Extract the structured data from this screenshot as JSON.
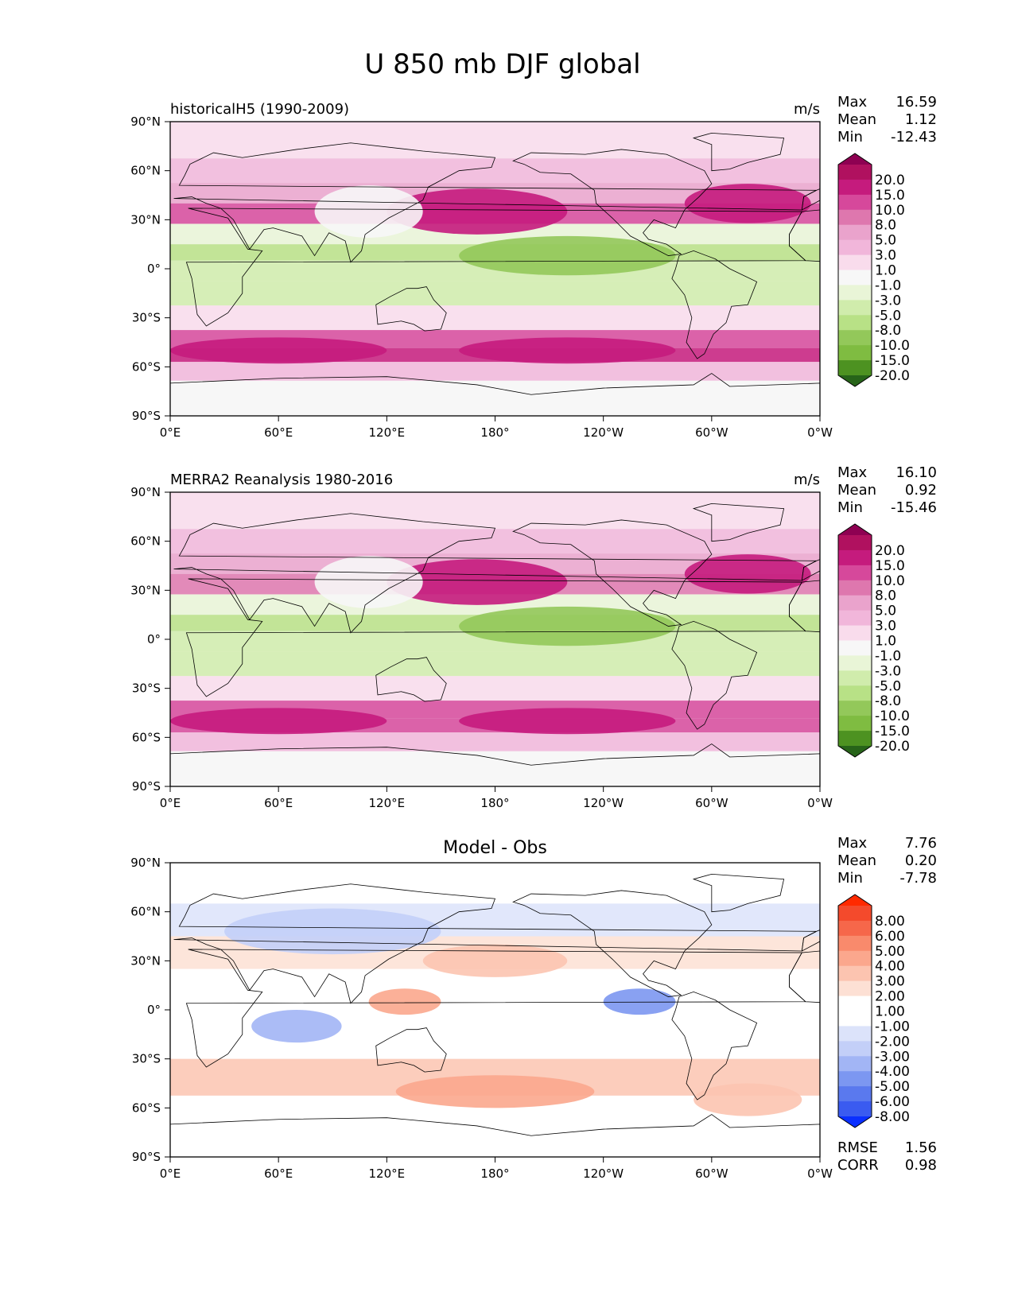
{
  "title": "U 850 mb DJF global",
  "panels": [
    {
      "title_left": "historicalH5 (1990-2009)",
      "title_center": "",
      "units": "m/s",
      "stats": [
        {
          "label": "Max",
          "value": "16.59"
        },
        {
          "label": "Mean",
          "value": "1.12"
        },
        {
          "label": "Min",
          "value": "-12.43"
        }
      ],
      "footer_stats": [],
      "colorbar": {
        "labels": [
          "20.0",
          "15.0",
          "10.0",
          "8.0",
          "5.0",
          "3.0",
          "1.0",
          "-1.0",
          "-3.0",
          "-5.0",
          "-8.0",
          "-10.0",
          "-15.0",
          "-20.0"
        ],
        "colors": [
          "#8e0152",
          "#b0115f",
          "#c51b7d",
          "#d6489b",
          "#de77ae",
          "#eaa3cc",
          "#f1b6da",
          "#f9dcec",
          "#f7f7f7",
          "#e9f5d7",
          "#d0ecac",
          "#b8e186",
          "#93c85a",
          "#7fbc41",
          "#4d9221",
          "#276419"
        ],
        "max_color": "#8e0152",
        "min_color": "#276419"
      }
    },
    {
      "title_left": "MERRA2 Reanalysis 1980-2016",
      "title_center": "",
      "units": "m/s",
      "stats": [
        {
          "label": "Max",
          "value": "16.10"
        },
        {
          "label": "Mean",
          "value": "0.92"
        },
        {
          "label": "Min",
          "value": "-15.46"
        }
      ],
      "footer_stats": [],
      "colorbar": {
        "labels": [
          "20.0",
          "15.0",
          "10.0",
          "8.0",
          "5.0",
          "3.0",
          "1.0",
          "-1.0",
          "-3.0",
          "-5.0",
          "-8.0",
          "-10.0",
          "-15.0",
          "-20.0"
        ],
        "colors": [
          "#8e0152",
          "#b0115f",
          "#c51b7d",
          "#d6489b",
          "#de77ae",
          "#eaa3cc",
          "#f1b6da",
          "#f9dcec",
          "#f7f7f7",
          "#e9f5d7",
          "#d0ecac",
          "#b8e186",
          "#93c85a",
          "#7fbc41",
          "#4d9221",
          "#276419"
        ],
        "max_color": "#8e0152",
        "min_color": "#276419"
      }
    },
    {
      "title_left": "",
      "title_center": "Model - Obs",
      "units": "",
      "stats": [
        {
          "label": "Max",
          "value": "7.76"
        },
        {
          "label": "Mean",
          "value": "0.20"
        },
        {
          "label": "Min",
          "value": "-7.78"
        }
      ],
      "footer_stats": [
        {
          "label": "RMSE",
          "value": "1.56"
        },
        {
          "label": "CORR",
          "value": "0.98"
        }
      ],
      "colorbar": {
        "labels": [
          "8.00",
          "6.00",
          "5.00",
          "4.00",
          "3.00",
          "2.00",
          "1.00",
          "-1.00",
          "-2.00",
          "-3.00",
          "-4.00",
          "-5.00",
          "-6.00",
          "-8.00"
        ],
        "colors": [
          "#ff2a00",
          "#f44a2c",
          "#f6674a",
          "#f98a6c",
          "#fba78d",
          "#fcc4b0",
          "#fde0d4",
          "#ffffff",
          "#ffffff",
          "#dce3fa",
          "#c3cff8",
          "#a2b5f5",
          "#7c97f1",
          "#5a79ee",
          "#3a5bf0",
          "#0a2fff"
        ],
        "max_color": "#ff2a00",
        "min_color": "#0a2fff"
      }
    }
  ],
  "axes": {
    "lat_ticks": [
      "90°N",
      "60°N",
      "30°N",
      "0°",
      "30°S",
      "60°S",
      "90°S"
    ],
    "lon_ticks": [
      "0°E",
      "60°E",
      "120°E",
      "180°",
      "120°W",
      "60°W",
      "0°W"
    ]
  },
  "chart_data": [
    {
      "type": "heatmap",
      "title": "historicalH5 (1990-2009)",
      "units": "m/s",
      "x": [
        0,
        60,
        120,
        180,
        240,
        300,
        360
      ],
      "y": [
        90,
        60,
        30,
        0,
        -30,
        -60,
        -90
      ],
      "xlim": [
        0,
        360
      ],
      "ylim": [
        -90,
        90
      ],
      "contour_levels": [
        -20,
        -15,
        -10,
        -8,
        -5,
        -3,
        -1,
        1,
        3,
        5,
        8,
        10,
        15,
        20
      ],
      "zonal_profile": [
        {
          "lat": 75,
          "value": 1
        },
        {
          "lat": 60,
          "value": 3
        },
        {
          "lat": 45,
          "value": 6
        },
        {
          "lat": 35,
          "value": 10
        },
        {
          "lat": 20,
          "value": -2
        },
        {
          "lat": 10,
          "value": -7
        },
        {
          "lat": 0,
          "value": -4
        },
        {
          "lat": -15,
          "value": -5
        },
        {
          "lat": -30,
          "value": 1
        },
        {
          "lat": -45,
          "value": 11
        },
        {
          "lat": -52,
          "value": 15
        },
        {
          "lat": -62,
          "value": 3
        },
        {
          "lat": -75,
          "value": -1
        }
      ],
      "stats": {
        "max": 16.59,
        "mean": 1.12,
        "min": -12.43
      }
    },
    {
      "type": "heatmap",
      "title": "MERRA2 Reanalysis 1980-2016",
      "units": "m/s",
      "x": [
        0,
        60,
        120,
        180,
        240,
        300,
        360
      ],
      "y": [
        90,
        60,
        30,
        0,
        -30,
        -60,
        -90
      ],
      "xlim": [
        0,
        360
      ],
      "ylim": [
        -90,
        90
      ],
      "contour_levels": [
        -20,
        -15,
        -10,
        -8,
        -5,
        -3,
        -1,
        1,
        3,
        5,
        8,
        10,
        15,
        20
      ],
      "zonal_profile": [
        {
          "lat": 75,
          "value": 1
        },
        {
          "lat": 60,
          "value": 3
        },
        {
          "lat": 45,
          "value": 5
        },
        {
          "lat": 35,
          "value": 9
        },
        {
          "lat": 20,
          "value": -2
        },
        {
          "lat": 10,
          "value": -6
        },
        {
          "lat": 0,
          "value": -4
        },
        {
          "lat": -15,
          "value": -4
        },
        {
          "lat": -30,
          "value": 1
        },
        {
          "lat": -45,
          "value": 10
        },
        {
          "lat": -52,
          "value": 14
        },
        {
          "lat": -62,
          "value": 3
        },
        {
          "lat": -75,
          "value": -1
        }
      ],
      "stats": {
        "max": 16.1,
        "mean": 0.92,
        "min": -15.46
      }
    },
    {
      "type": "heatmap",
      "title": "Model - Obs",
      "x": [
        0,
        60,
        120,
        180,
        240,
        300,
        360
      ],
      "y": [
        90,
        60,
        30,
        0,
        -30,
        -60,
        -90
      ],
      "xlim": [
        0,
        360
      ],
      "ylim": [
        -90,
        90
      ],
      "contour_levels": [
        -8,
        -6,
        -5,
        -4,
        -3,
        -2,
        -1,
        1,
        2,
        3,
        4,
        5,
        6,
        8
      ],
      "zonal_profile": [
        {
          "lat": 75,
          "value": 0
        },
        {
          "lat": 55,
          "value": -2
        },
        {
          "lat": 35,
          "value": 2
        },
        {
          "lat": 15,
          "value": -1
        },
        {
          "lat": 0,
          "value": 1
        },
        {
          "lat": -15,
          "value": -1
        },
        {
          "lat": -45,
          "value": 3
        },
        {
          "lat": -60,
          "value": 1
        },
        {
          "lat": -75,
          "value": 0
        }
      ],
      "stats": {
        "max": 7.76,
        "mean": 0.2,
        "min": -7.78,
        "rmse": 1.56,
        "corr": 0.98
      }
    }
  ]
}
